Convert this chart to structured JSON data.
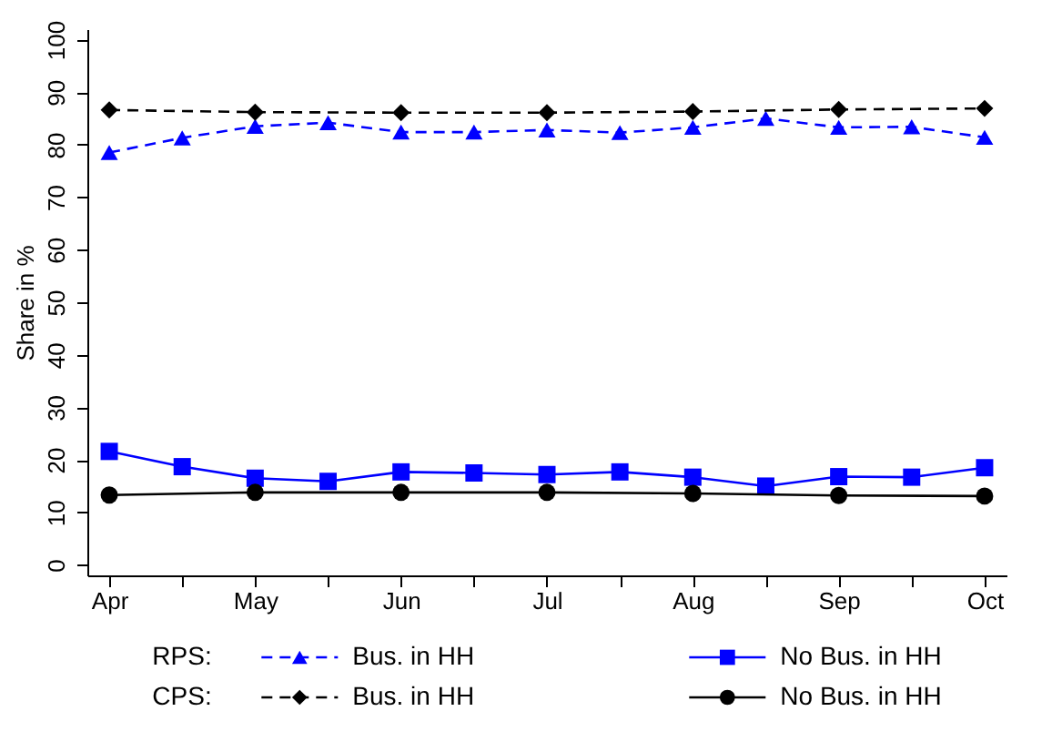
{
  "chart_data": {
    "type": "line",
    "ylabel": "Share in %",
    "categories": [
      "Apr",
      null,
      "May",
      null,
      "Jun",
      null,
      "Jul",
      null,
      "Aug",
      null,
      "Sep",
      null,
      "Oct"
    ],
    "ylim": [
      -2,
      102
    ],
    "yticks": [
      0,
      10,
      20,
      30,
      40,
      50,
      60,
      70,
      80,
      90,
      100
    ],
    "annotations": [
      "RPS:",
      "CPS:"
    ],
    "legend": "bottom",
    "grid": false,
    "series": [
      {
        "name": "Bus. in HH",
        "color": "#0000ff",
        "marker": "triangle",
        "line_style": "dashed",
        "values": [
          78.5,
          81.3,
          83.5,
          84.2,
          82.4,
          82.4,
          82.8,
          82.3,
          83.3,
          85.0,
          83.3,
          83.4,
          81.4
        ]
      },
      {
        "name": "No Bus. in HH",
        "color": "#0000ff",
        "marker": "square",
        "line_style": "solid",
        "values": [
          21.6,
          18.7,
          16.5,
          15.9,
          17.7,
          17.5,
          17.2,
          17.7,
          16.7,
          15.0,
          16.8,
          16.7,
          18.5
        ]
      },
      {
        "name": "Bus. in HH",
        "color": "#000000",
        "marker": "diamond",
        "line_style": "dashed",
        "values": [
          86.6,
          null,
          86.2,
          null,
          86.1,
          null,
          86.1,
          null,
          86.3,
          null,
          86.7,
          null,
          86.9
        ]
      },
      {
        "name": "No Bus. in HH",
        "color": "#000000",
        "marker": "circle",
        "line_style": "solid",
        "values": [
          13.3,
          null,
          13.8,
          null,
          13.8,
          null,
          13.8,
          null,
          13.6,
          null,
          13.2,
          null,
          13.1
        ]
      }
    ]
  }
}
